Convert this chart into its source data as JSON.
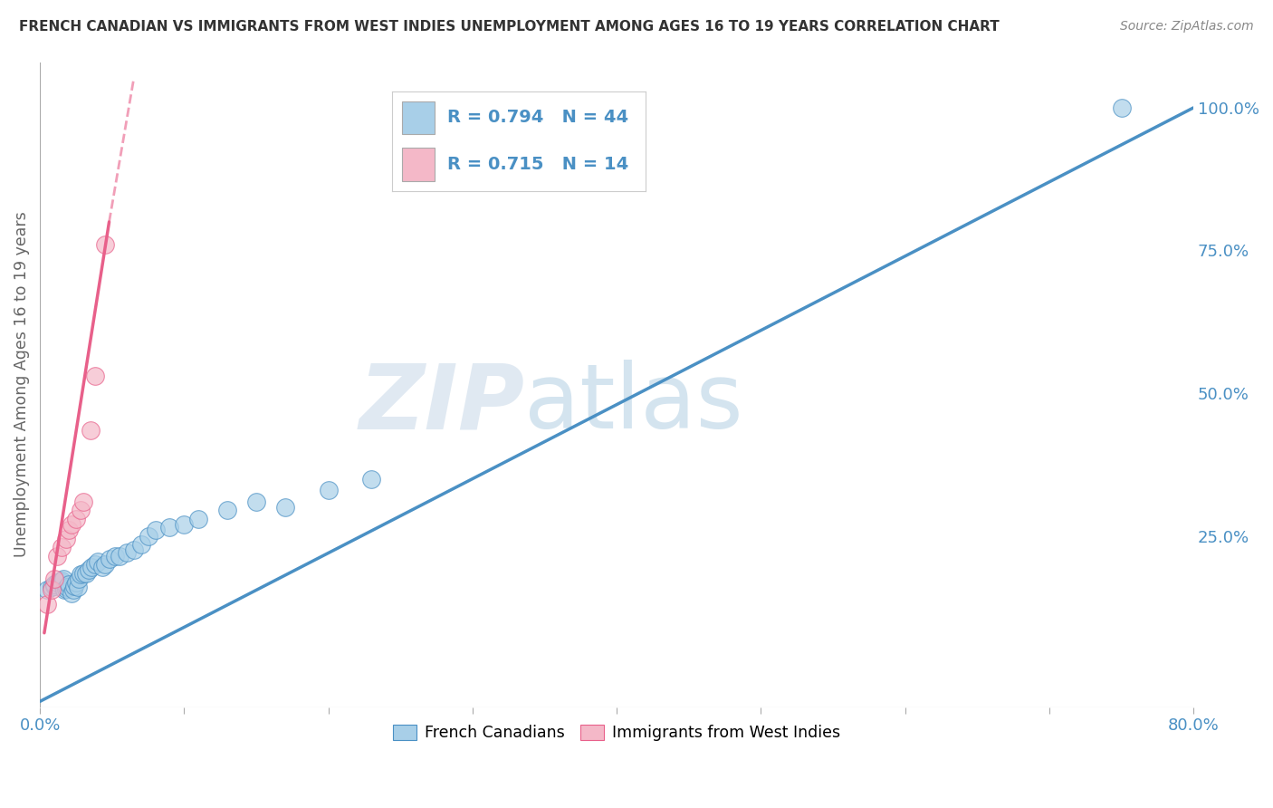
{
  "title": "FRENCH CANADIAN VS IMMIGRANTS FROM WEST INDIES UNEMPLOYMENT AMONG AGES 16 TO 19 YEARS CORRELATION CHART",
  "source": "Source: ZipAtlas.com",
  "ylabel": "Unemployment Among Ages 16 to 19 years",
  "watermark_left": "ZIP",
  "watermark_right": "atlas",
  "x_min": 0.0,
  "x_max": 0.8,
  "y_min": -0.05,
  "y_max": 1.08,
  "x_ticks": [
    0.0,
    0.1,
    0.2,
    0.3,
    0.4,
    0.5,
    0.6,
    0.7,
    0.8
  ],
  "x_tick_labels": [
    "0.0%",
    "",
    "",
    "",
    "",
    "",
    "",
    "",
    "80.0%"
  ],
  "y_ticks_right": [
    0.25,
    0.5,
    0.75,
    1.0
  ],
  "y_tick_labels_right": [
    "25.0%",
    "50.0%",
    "75.0%",
    "100.0%"
  ],
  "blue_color": "#a8cfe8",
  "pink_color": "#f4b8c8",
  "blue_line_color": "#4a90c4",
  "pink_line_color": "#e8608a",
  "pink_line_solid_color": "#e8608a",
  "legend_R1": "0.794",
  "legend_N1": "44",
  "legend_R2": "0.715",
  "legend_N2": "14",
  "blue_scatter_x": [
    0.005,
    0.008,
    0.01,
    0.01,
    0.012,
    0.014,
    0.015,
    0.016,
    0.017,
    0.018,
    0.019,
    0.02,
    0.022,
    0.023,
    0.024,
    0.025,
    0.026,
    0.027,
    0.028,
    0.03,
    0.032,
    0.034,
    0.036,
    0.038,
    0.04,
    0.043,
    0.045,
    0.048,
    0.052,
    0.055,
    0.06,
    0.065,
    0.07,
    0.075,
    0.08,
    0.09,
    0.1,
    0.11,
    0.13,
    0.15,
    0.17,
    0.2,
    0.23,
    0.75
  ],
  "blue_scatter_y": [
    0.155,
    0.16,
    0.162,
    0.165,
    0.168,
    0.17,
    0.172,
    0.175,
    0.155,
    0.158,
    0.16,
    0.165,
    0.15,
    0.155,
    0.162,
    0.168,
    0.16,
    0.175,
    0.182,
    0.185,
    0.185,
    0.19,
    0.195,
    0.2,
    0.205,
    0.195,
    0.2,
    0.21,
    0.215,
    0.215,
    0.22,
    0.225,
    0.235,
    0.25,
    0.26,
    0.265,
    0.27,
    0.28,
    0.295,
    0.31,
    0.3,
    0.33,
    0.35,
    1.0
  ],
  "pink_scatter_x": [
    0.005,
    0.008,
    0.01,
    0.012,
    0.015,
    0.018,
    0.02,
    0.022,
    0.025,
    0.028,
    0.03,
    0.035,
    0.038,
    0.045
  ],
  "pink_scatter_y": [
    0.13,
    0.155,
    0.175,
    0.215,
    0.23,
    0.245,
    0.26,
    0.27,
    0.28,
    0.295,
    0.31,
    0.435,
    0.53,
    0.76
  ],
  "blue_trend_x0": 0.0,
  "blue_trend_y0": -0.04,
  "blue_trend_x1": 0.8,
  "blue_trend_y1": 1.0,
  "pink_trend_solid_x0": 0.003,
  "pink_trend_solid_y0": 0.08,
  "pink_trend_solid_x1": 0.048,
  "pink_trend_solid_y1": 0.8,
  "pink_trend_dash_x0": 0.048,
  "pink_trend_dash_y0": 0.8,
  "pink_trend_dash_x1": 0.065,
  "pink_trend_dash_y1": 1.05,
  "background_color": "#ffffff",
  "grid_color": "#d0d0d0",
  "title_color": "#333333",
  "axis_label_color": "#666666",
  "tick_color": "#4a90c4",
  "right_tick_color": "#4a90c4"
}
